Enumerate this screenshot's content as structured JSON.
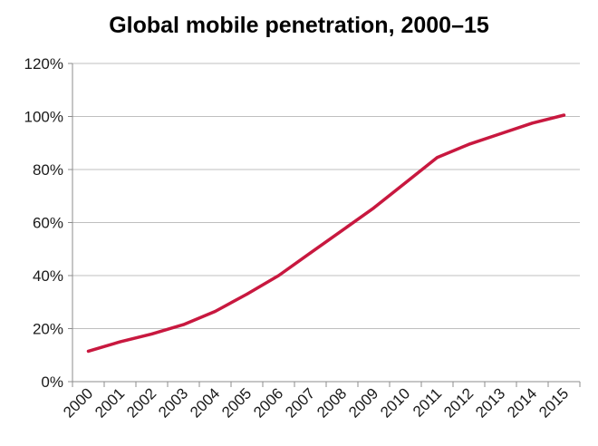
{
  "chart_data": {
    "type": "line",
    "title": "Global mobile penetration, 2000–15",
    "xlabel": "",
    "ylabel": "",
    "categories": [
      "2000",
      "2001",
      "2002",
      "2003",
      "2004",
      "2005",
      "2006",
      "2007",
      "2008",
      "2009",
      "2010",
      "2011",
      "2012",
      "2013",
      "2014",
      "2015"
    ],
    "series": [
      {
        "name": "Global mobile penetration",
        "values": [
          11.5,
          15,
          18,
          21.5,
          26.5,
          33,
          40,
          48.5,
          57,
          65.5,
          75,
          84.5,
          89.5,
          93.5,
          97.5,
          100.5
        ]
      }
    ],
    "y_tick_labels": [
      "0%",
      "20%",
      "40%",
      "60%",
      "80%",
      "100%",
      "120%"
    ],
    "y_ticks": [
      0,
      20,
      40,
      60,
      80,
      100,
      120
    ],
    "ylim": [
      0,
      120
    ],
    "grid": true,
    "legend": "none",
    "line_color": "#c8183f",
    "grid_color": "#bfbfbf",
    "axis_color": "#8c8c8c"
  }
}
